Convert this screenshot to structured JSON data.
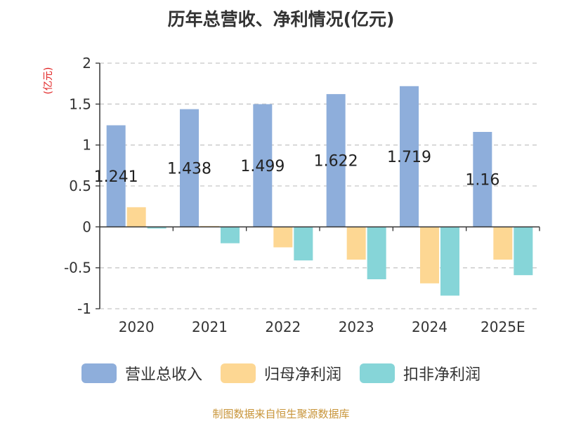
{
  "chart_data": {
    "type": "bar",
    "title": "历年总营收、净利情况(亿元)",
    "ylabel": "(亿元)",
    "categories": [
      "2020",
      "2021",
      "2022",
      "2023",
      "2024",
      "2025E"
    ],
    "series": [
      {
        "name": "营业总收入",
        "color": "#8eaedb",
        "values": [
          1.241,
          1.438,
          1.499,
          1.622,
          1.719,
          1.16
        ],
        "labels": [
          "1.241",
          "1.438",
          "1.499",
          "1.622",
          "1.719",
          "1.16"
        ]
      },
      {
        "name": "归母净利润",
        "color": "#fdd793",
        "values": [
          0.24,
          0.01,
          -0.25,
          -0.4,
          -0.69,
          -0.4
        ]
      },
      {
        "name": "扣非净利润",
        "color": "#86d5d8",
        "values": [
          -0.02,
          -0.2,
          -0.41,
          -0.64,
          -0.84,
          -0.59
        ]
      }
    ],
    "ylim": [
      -1,
      2
    ],
    "yticks": [
      "2",
      "1.5",
      "1",
      "0.5",
      "0",
      "-0.5",
      "-1"
    ],
    "grid": true,
    "legend_position": "bottom"
  },
  "source": "制图数据来自恒生聚源数据库"
}
